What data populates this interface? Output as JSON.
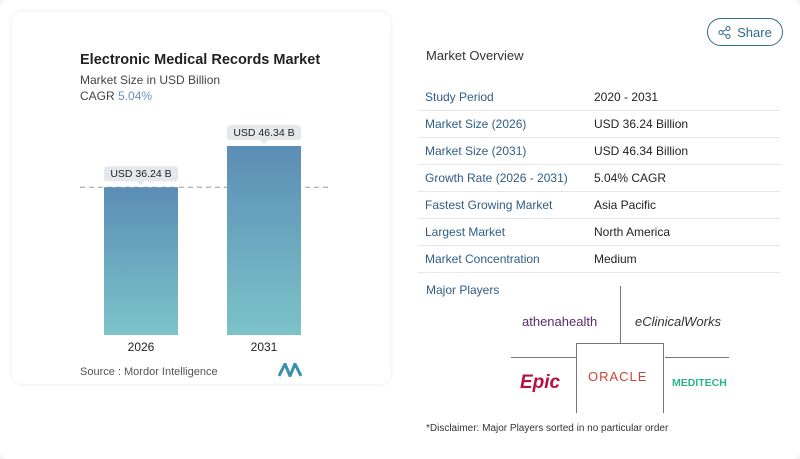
{
  "header": {
    "share_label": "Share",
    "share_icon": "share-icon"
  },
  "chart_data": {
    "type": "bar",
    "title": "Electronic Medical Records Market",
    "subtitle": "Market Size in USD Billion",
    "cagr_label": "CAGR",
    "cagr_value": "5.04%",
    "categories": [
      "2026",
      "2031"
    ],
    "values": [
      36.24,
      46.34
    ],
    "data_labels": [
      "USD 36.24 B",
      "USD 46.34 B"
    ],
    "reference_line": 36.24,
    "ylim": [
      0,
      46.34
    ],
    "source": "Source :  Mordor Intelligence",
    "colors": {
      "top": "#5b8db5",
      "bottom": "#7cc3c9",
      "accent": "#6d8fb5"
    }
  },
  "overview": {
    "title": "Market Overview",
    "rows": [
      {
        "key": "Study Period",
        "value": "2020 - 2031"
      },
      {
        "key": "Market Size (2026)",
        "value": "USD 36.24 Billion"
      },
      {
        "key": "Market Size (2031)",
        "value": "USD 46.34 Billion"
      },
      {
        "key": "Growth Rate (2026 - 2031)",
        "value": "5.04% CAGR"
      },
      {
        "key": "Fastest Growing Market",
        "value": "Asia Pacific"
      },
      {
        "key": "Largest Market",
        "value": "North America"
      },
      {
        "key": "Market Concentration",
        "value": "Medium"
      }
    ]
  },
  "players": {
    "title": "Major Players",
    "logos": [
      "athenahealth",
      "eClinicalWorks",
      "Epic",
      "ORACLE",
      "MEDITECH"
    ]
  },
  "disclaimer": "*Disclaimer: Major Players sorted in no particular order"
}
